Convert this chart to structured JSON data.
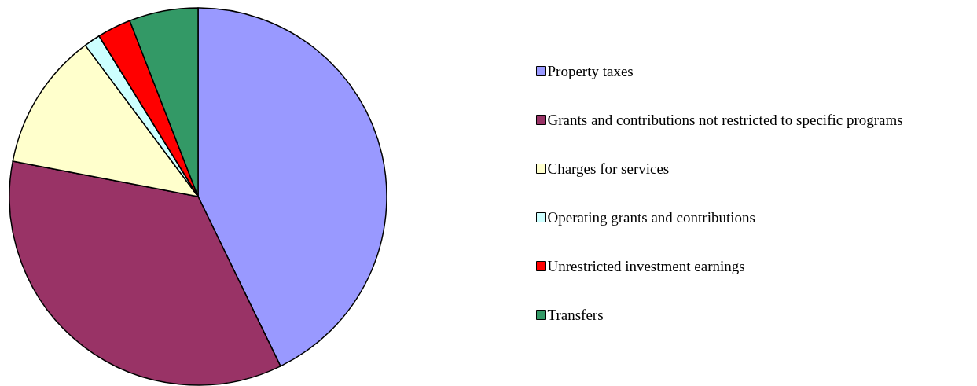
{
  "chart_data": {
    "type": "pie",
    "categories": [
      "Property taxes",
      "Grants and contributions not restricted to specific programs",
      "Charges for services",
      "Operating grants and contributions",
      "Unrestricted investment earnings",
      "Transfers"
    ],
    "values": [
      42.8,
      35.2,
      11.8,
      1.4,
      2.9,
      5.9
    ],
    "colors": [
      "#9999ff",
      "#993366",
      "#ffffcc",
      "#ccffff",
      "#ff0000",
      "#339966"
    ],
    "legend": "right"
  }
}
